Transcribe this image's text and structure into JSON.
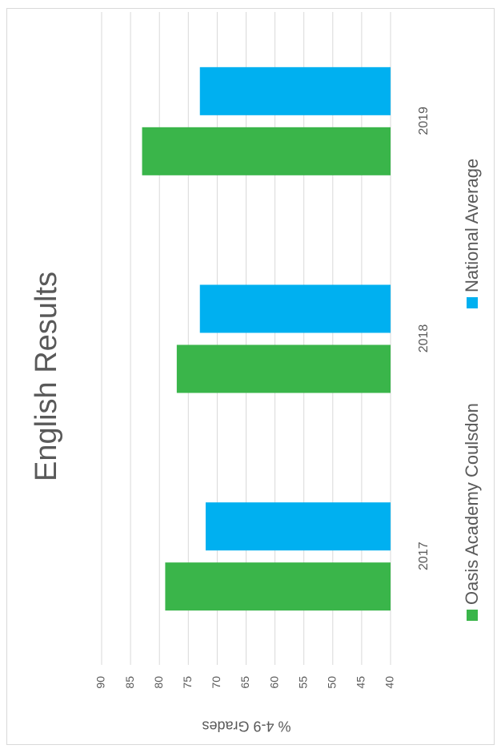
{
  "chart_data": {
    "type": "bar",
    "title": "English Results",
    "y_label": "% 4-9 Grades",
    "categories": [
      "2017",
      "2018",
      "2019"
    ],
    "series": [
      {
        "name": "Oasis Academy Coulsdon",
        "color": "#3ab54a",
        "values": [
          79,
          77,
          83
        ]
      },
      {
        "name": "National Average",
        "color": "#00b0f0",
        "values": [
          72,
          73,
          73
        ]
      }
    ],
    "ylim": [
      40,
      90
    ],
    "yticks": [
      40,
      45,
      50,
      55,
      60,
      65,
      70,
      75,
      80,
      85,
      90
    ],
    "grid": true,
    "legend": "bottom"
  }
}
